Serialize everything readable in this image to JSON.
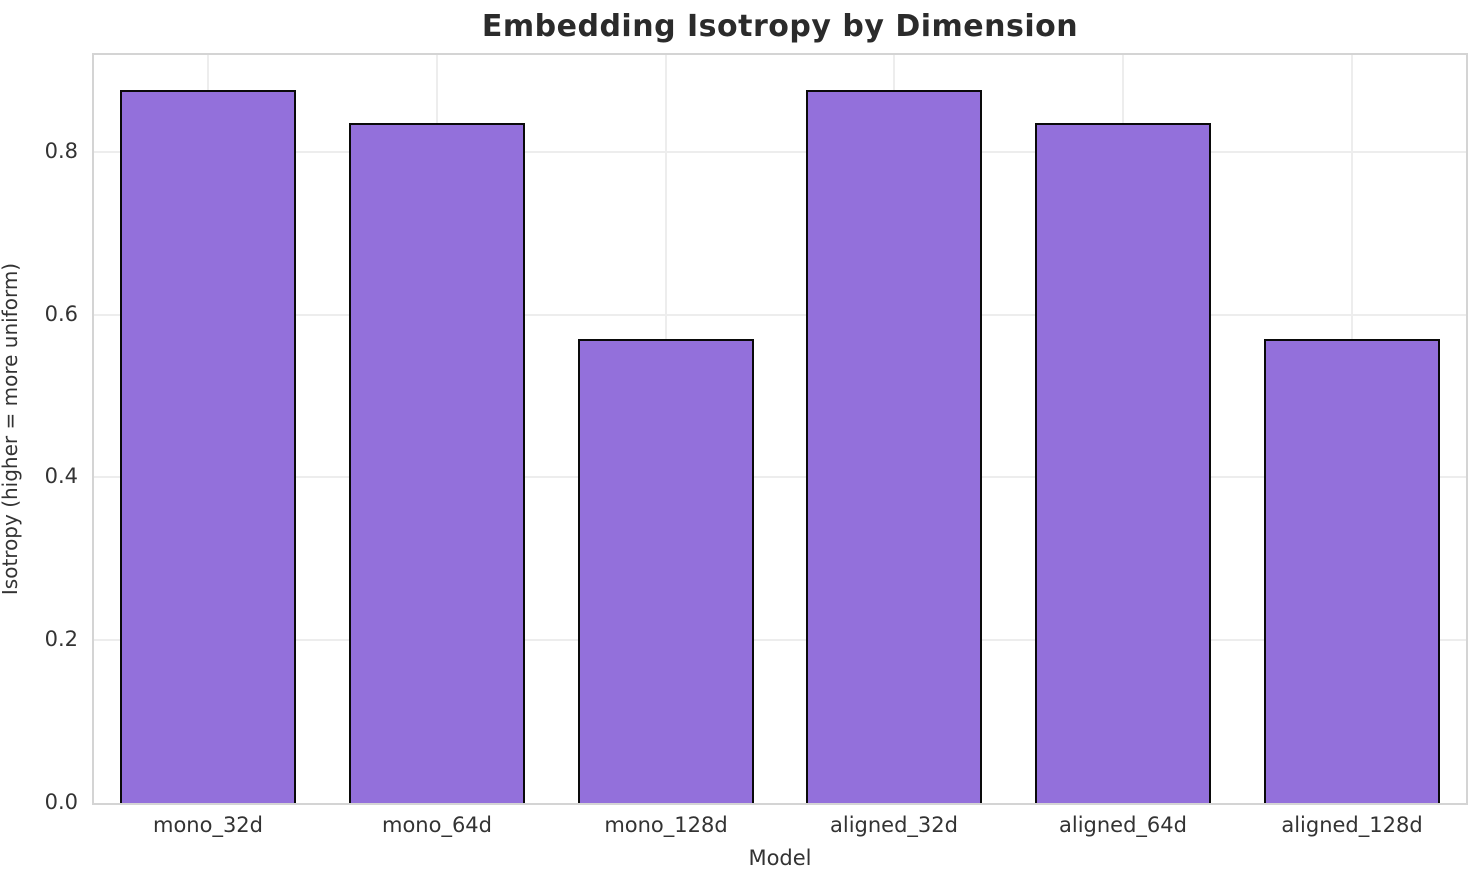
{
  "chart_data": {
    "type": "bar",
    "title": "Embedding Isotropy by Dimension",
    "xlabel": "Model",
    "ylabel": "Isotropy (higher = more uniform)",
    "categories": [
      "mono_32d",
      "mono_64d",
      "mono_128d",
      "aligned_32d",
      "aligned_64d",
      "aligned_128d"
    ],
    "values": [
      0.876,
      0.835,
      0.57,
      0.876,
      0.835,
      0.57
    ],
    "ytick_labels": [
      "0.0",
      "0.2",
      "0.4",
      "0.6",
      "0.8"
    ],
    "yticks": [
      0.0,
      0.2,
      0.4,
      0.6,
      0.8
    ],
    "ylim": [
      0,
      0.919
    ],
    "grid": true,
    "legend": null,
    "bar_fill_color": "#9370DB",
    "bar_edge_color": "#0a0a0a",
    "grid_color": "#ededed",
    "spine_color": "#d4d4d4",
    "text_color": "#333333",
    "title_color": "#2b2b2b",
    "bar_width_fraction": 0.77
  }
}
